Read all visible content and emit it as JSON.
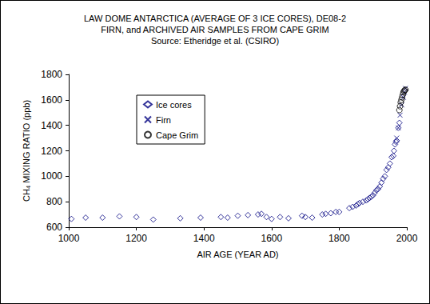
{
  "chart_data": {
    "type": "scatter",
    "title": "LAW DOME ANTARCTICA (AVERAGE OF 3 ICE CORES), DE08-2\nFIRN, and ARCHIVED AIR SAMPLES FROM CAPE GRIM\nSource: Etheridge et al. (CSIRO)",
    "x_label": "AIR AGE (YEAR AD)",
    "y_label": "CH₄ MIXING RATIO (ppb)",
    "xlim": [
      1000,
      2000
    ],
    "xticks": [
      1000,
      1200,
      1400,
      1600,
      1800,
      2000
    ],
    "ylim": [
      600,
      1800
    ],
    "yticks": [
      600,
      800,
      1000,
      1200,
      1400,
      1600,
      1800
    ],
    "grid": false,
    "legend": "upper left",
    "series": [
      {
        "name": "Ice cores",
        "color": "#000080",
        "marker": "diamond",
        "x": [
          1008,
          1050,
          1100,
          1150,
          1200,
          1250,
          1330,
          1390,
          1450,
          1470,
          1500,
          1530,
          1560,
          1570,
          1585,
          1600,
          1625,
          1650,
          1690,
          1700,
          1720,
          1750,
          1760,
          1775,
          1790,
          1800,
          1830,
          1840,
          1850,
          1855,
          1860,
          1870,
          1880,
          1885,
          1890,
          1895,
          1900,
          1905,
          1910,
          1915,
          1920,
          1925,
          1930,
          1935,
          1940,
          1945,
          1950,
          1955,
          1960,
          1962,
          1965,
          1968,
          1970,
          1975,
          1978
        ],
        "values": [
          665,
          675,
          675,
          685,
          680,
          660,
          670,
          675,
          680,
          675,
          690,
          695,
          700,
          705,
          680,
          665,
          680,
          670,
          690,
          680,
          675,
          700,
          705,
          710,
          720,
          720,
          750,
          760,
          770,
          780,
          790,
          800,
          810,
          820,
          830,
          840,
          850,
          870,
          890,
          900,
          920,
          950,
          980,
          1000,
          1050,
          1070,
          1100,
          1150,
          1160,
          1200,
          1250,
          1270,
          1280,
          1380,
          1420
        ]
      },
      {
        "name": "Firn",
        "color": "#000080",
        "marker": "x",
        "x": [
          1970,
          1975,
          1980,
          1985,
          1990,
          1993,
          1996
        ],
        "values": [
          1300,
          1380,
          1480,
          1560,
          1620,
          1660,
          1690
        ]
      },
      {
        "name": "Cape Grim",
        "color": "#000000",
        "marker": "circle",
        "x": [
          1978,
          1980,
          1982,
          1984,
          1986,
          1988,
          1990,
          1992,
          1994,
          1996
        ],
        "values": [
          1520,
          1550,
          1580,
          1600,
          1620,
          1640,
          1660,
          1670,
          1675,
          1680
        ]
      }
    ]
  }
}
